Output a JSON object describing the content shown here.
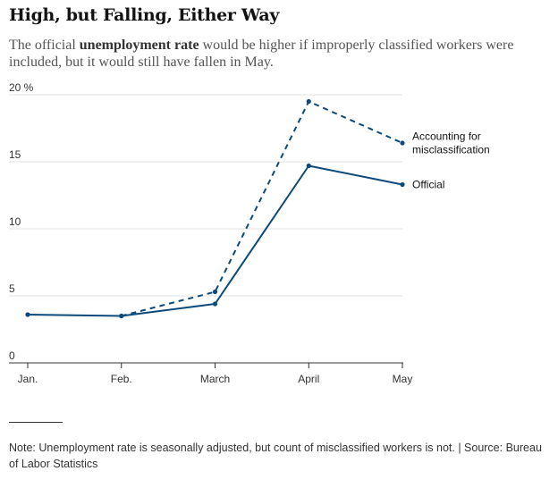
{
  "header": {
    "title": "High, but Falling, Either Way",
    "subtitle_before": "The official ",
    "subtitle_bold": "unemployment rate",
    "subtitle_after": " would be higher if improperly classified workers were included, but it would still have fallen in May."
  },
  "footer": {
    "note": "Note: Unemployment rate is seasonally adjusted, but count of misclassified workers is not. | Source: Bureau of Labor Statistics"
  },
  "colors": {
    "line": "#0b4a7a",
    "grid": "#e2e2e2",
    "axis": "#333333"
  },
  "chart_data": {
    "type": "line",
    "title": "High, but Falling, Either Way",
    "categories": [
      "Jan.",
      "Feb.",
      "March",
      "April",
      "May"
    ],
    "yticks": [
      0,
      5,
      10,
      15,
      20
    ],
    "ytick_labels": [
      "0",
      "5",
      "10",
      "15",
      "20 %"
    ],
    "ylim": [
      0,
      20
    ],
    "grid": true,
    "series": [
      {
        "name": "Official",
        "style": "solid",
        "values": [
          3.6,
          3.5,
          4.4,
          14.7,
          13.3
        ]
      },
      {
        "name": "Accounting for misclassification",
        "label_lines": [
          "Accounting for",
          "misclassification"
        ],
        "style": "dashed",
        "values": [
          null,
          3.5,
          5.3,
          19.5,
          16.4
        ]
      }
    ]
  }
}
